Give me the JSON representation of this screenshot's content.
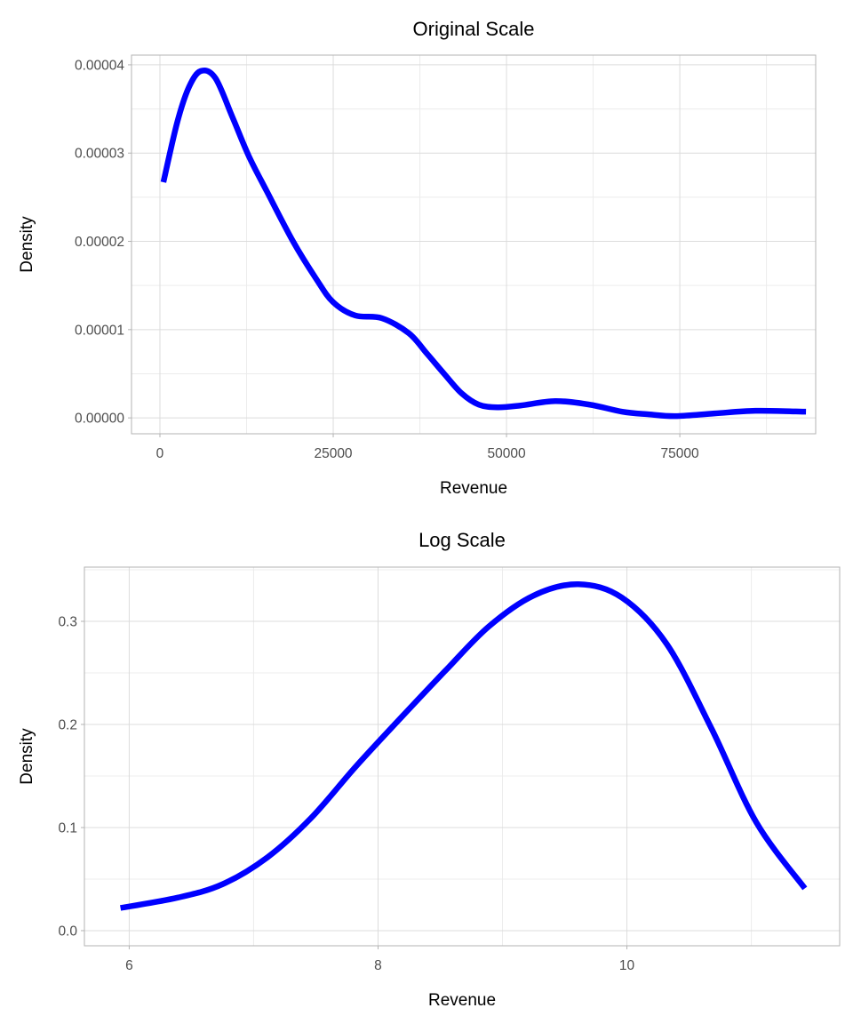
{
  "colors": {
    "line": "#0000ff",
    "grid": "#dcdcdc",
    "panel_border": "#b3b3b3"
  },
  "chart_data": [
    {
      "type": "line",
      "title": "Original Scale",
      "xlabel": "Revenue",
      "ylabel": "Density",
      "xlim": [
        -4100,
        94600
      ],
      "ylim": [
        -1.8e-06,
        4.11e-05
      ],
      "xticks": [
        0,
        25000,
        50000,
        75000
      ],
      "xtick_labels": [
        "0",
        "25000",
        "50000",
        "75000"
      ],
      "yticks": [
        0,
        1e-05,
        2e-05,
        3e-05,
        4e-05
      ],
      "ytick_labels": [
        "0.00000",
        "0.00001",
        "0.00002",
        "0.00003",
        "0.00004"
      ],
      "grid": true,
      "series": [
        {
          "color": "#0000ff",
          "x": [
            500,
            2500,
            4200,
            5900,
            8000,
            10500,
            12800,
            15400,
            19200,
            22500,
            25000,
            28200,
            32000,
            35900,
            38500,
            41000,
            43500,
            46000,
            48700,
            52000,
            57000,
            62000,
            66700,
            70500,
            74400,
            80000,
            85900,
            93200
          ],
          "y": [
            2.67e-05,
            3.35e-05,
            3.75e-05,
            3.93e-05,
            3.85e-05,
            3.4e-05,
            2.97e-05,
            2.57e-05,
            2e-05,
            1.58e-05,
            1.31e-05,
            1.16e-05,
            1.13e-05,
            9.6e-06,
            7.3e-06,
            5e-06,
            2.8e-06,
            1.5e-06,
            1.2e-06,
            1.4e-06,
            1.9e-06,
            1.5e-06,
            7e-07,
            4e-07,
            2e-07,
            5e-07,
            8e-07,
            7e-07
          ]
        }
      ]
    },
    {
      "type": "line",
      "title": "Log Scale",
      "xlabel": "Revenue",
      "ylabel": "Density",
      "xlim": [
        5.64,
        11.71
      ],
      "ylim": [
        -0.0147,
        0.3526
      ],
      "xticks": [
        6,
        8,
        10
      ],
      "xtick_labels": [
        "6",
        "8",
        "10"
      ],
      "yticks": [
        0,
        0.1,
        0.2,
        0.3
      ],
      "ytick_labels": [
        "0.0",
        "0.1",
        "0.2",
        "0.3"
      ],
      "grid": true,
      "series": [
        {
          "color": "#0000ff",
          "x": [
            5.93,
            6.39,
            6.75,
            7.11,
            7.46,
            7.82,
            8.18,
            8.54,
            8.89,
            9.25,
            9.61,
            9.96,
            10.32,
            10.68,
            11.04,
            11.43
          ],
          "y": [
            0.022,
            0.032,
            0.045,
            0.071,
            0.109,
            0.159,
            0.206,
            0.252,
            0.295,
            0.325,
            0.336,
            0.323,
            0.278,
            0.196,
            0.105,
            0.041
          ]
        }
      ]
    }
  ]
}
